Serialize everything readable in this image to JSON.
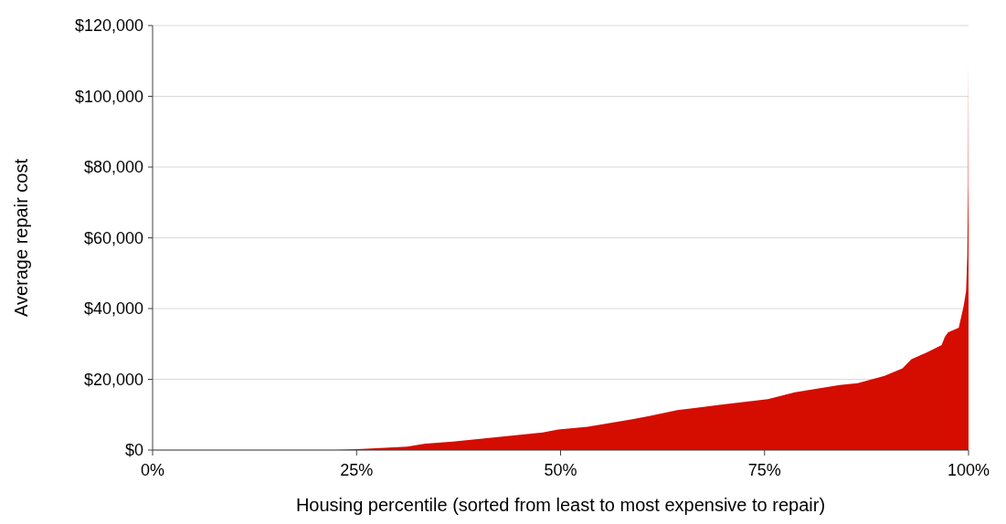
{
  "chart_data": {
    "type": "area",
    "xlabel": "Housing percentile (sorted from least to most expensive to repair)",
    "ylabel": "Average repair cost",
    "x": [
      0,
      10,
      22.4,
      25.7,
      31.2,
      33.4,
      36.8,
      42.3,
      47.8,
      49.7,
      53.3,
      58.8,
      61,
      64.3,
      69.9,
      75.4,
      78.7,
      84.2,
      86.4,
      89.7,
      91.9,
      93,
      94.9,
      96.7,
      97.1,
      97.5,
      98.8,
      99.4,
      99.7,
      99.85,
      99.95,
      100
    ],
    "series": [
      {
        "color": "#d40d00",
        "values": [
          0,
          0,
          0,
          300,
          1000,
          1800,
          2400,
          3700,
          5000,
          5800,
          6600,
          8700,
          9700,
          11300,
          12900,
          14400,
          16300,
          18400,
          18900,
          21000,
          23100,
          25700,
          27600,
          29700,
          32000,
          33300,
          34600,
          40700,
          45000,
          55000,
          75000,
          110000
        ]
      }
    ],
    "xlim": [
      0,
      100
    ],
    "xticks": [
      {
        "value": 0,
        "label": "0%"
      },
      {
        "value": 25,
        "label": "25%"
      },
      {
        "value": 50,
        "label": "50%"
      },
      {
        "value": 75,
        "label": "75%"
      },
      {
        "value": 100,
        "label": "100%"
      }
    ],
    "ylim": [
      0,
      120000
    ],
    "yticks": [
      {
        "value": 0,
        "label": "$0"
      },
      {
        "value": 20000,
        "label": "$20,000"
      },
      {
        "value": 40000,
        "label": "$40,000"
      },
      {
        "value": 60000,
        "label": "$60,000"
      },
      {
        "value": 80000,
        "label": "$80,000"
      },
      {
        "value": 100000,
        "label": "$100,000"
      },
      {
        "value": 120000,
        "label": "$120,000"
      }
    ],
    "grid": "y"
  }
}
